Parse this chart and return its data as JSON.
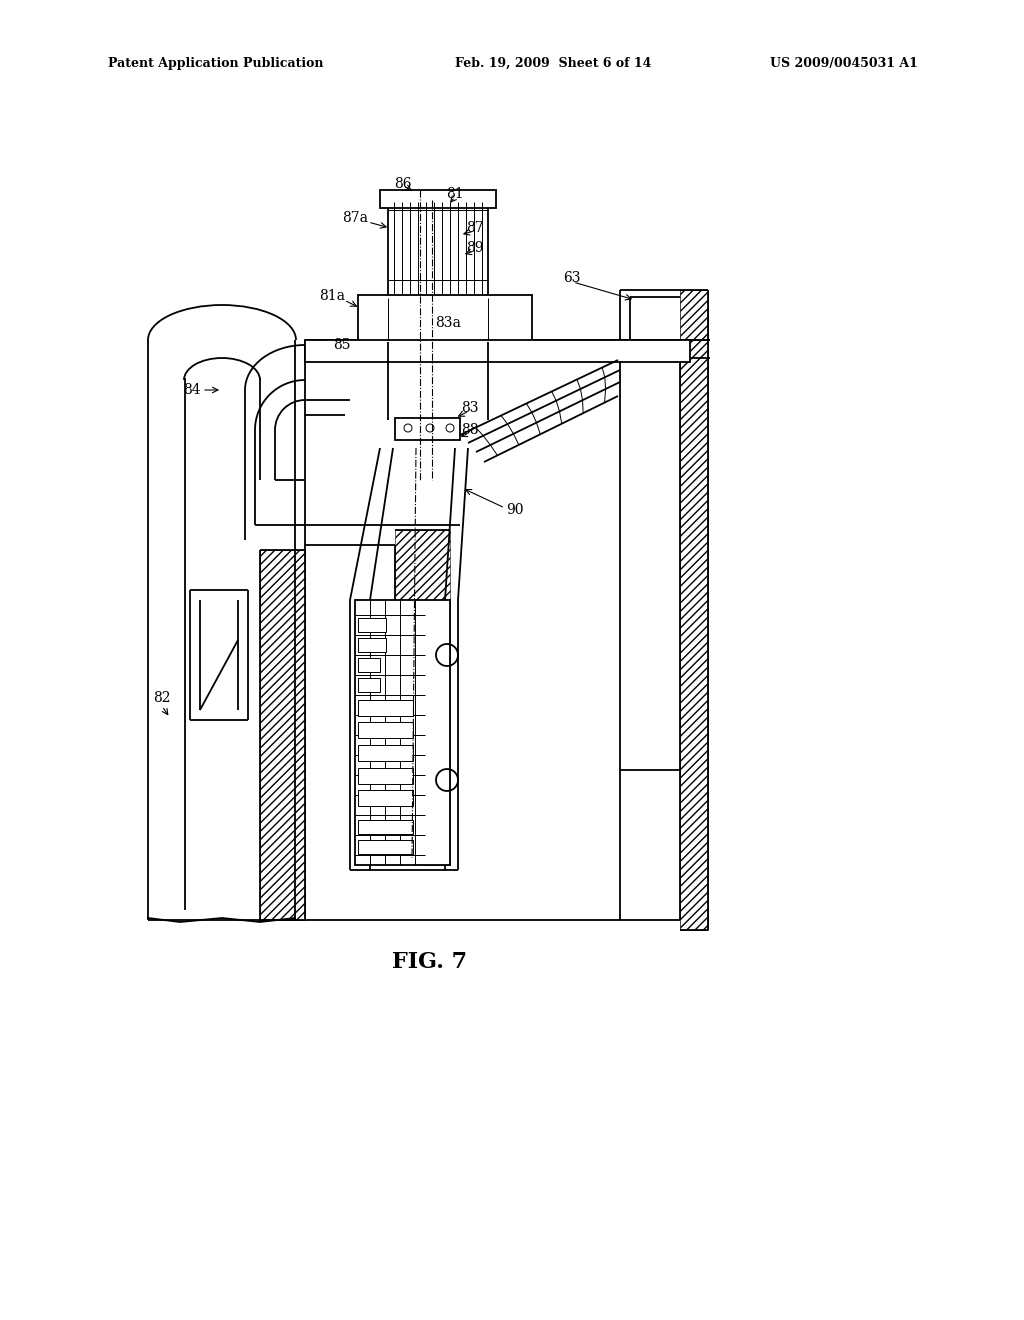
{
  "bg_color": "#ffffff",
  "lc": "#000000",
  "header_left": "Patent Application Publication",
  "header_mid": "Feb. 19, 2009  Sheet 6 of 14",
  "header_right": "US 2009/0045031 A1",
  "figure_label": "FIG. 7",
  "lw": 1.3,
  "lt": 0.7,
  "lk": 2.0,
  "font_size": 10,
  "fig_label_size": 16
}
